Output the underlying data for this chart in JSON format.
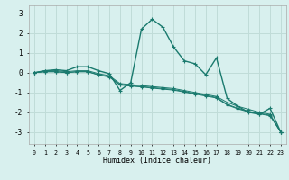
{
  "xlabel": "Humidex (Indice chaleur)",
  "bg_color": "#d8f0ee",
  "grid_color": "#c0dcd8",
  "line_color": "#1a7a6e",
  "xlim": [
    -0.5,
    23.5
  ],
  "ylim": [
    -3.6,
    3.4
  ],
  "xtick_labels": [
    "0",
    "1",
    "2",
    "3",
    "4",
    "5",
    "6",
    "7",
    "8",
    "9",
    "10",
    "11",
    "12",
    "13",
    "14",
    "15",
    "16",
    "17",
    "18",
    "19",
    "20",
    "21",
    "22",
    "23"
  ],
  "ytick_labels": [
    "-3",
    "-2",
    "-1",
    "0",
    "1",
    "2",
    "3"
  ],
  "series": [
    [
      0,
      0.1,
      0.15,
      0.1,
      0.3,
      0.3,
      0.1,
      -0.05,
      -0.9,
      -0.5,
      2.2,
      2.7,
      2.3,
      1.3,
      0.6,
      0.45,
      -0.1,
      0.75,
      -1.3,
      -1.7,
      -2.0,
      -2.1,
      -1.8,
      -3.0
    ],
    [
      0,
      0.1,
      0.1,
      0.05,
      0.1,
      0.1,
      -0.05,
      -0.15,
      -0.55,
      -0.6,
      -0.65,
      -0.7,
      -0.75,
      -0.8,
      -0.9,
      -1.0,
      -1.1,
      -1.2,
      -1.5,
      -1.7,
      -1.85,
      -2.0,
      -2.1,
      -3.0
    ],
    [
      0,
      0.05,
      0.05,
      0.0,
      0.05,
      0.05,
      -0.1,
      -0.2,
      -0.6,
      -0.65,
      -0.7,
      -0.75,
      -0.8,
      -0.85,
      -0.95,
      -1.05,
      -1.15,
      -1.25,
      -1.6,
      -1.8,
      -1.95,
      -2.05,
      -2.15,
      -3.0
    ],
    [
      0,
      0.05,
      0.05,
      0.0,
      0.05,
      0.05,
      -0.12,
      -0.22,
      -0.62,
      -0.68,
      -0.72,
      -0.78,
      -0.83,
      -0.88,
      -0.98,
      -1.08,
      -1.18,
      -1.28,
      -1.63,
      -1.83,
      -1.98,
      -2.08,
      -2.18,
      -3.0
    ]
  ]
}
